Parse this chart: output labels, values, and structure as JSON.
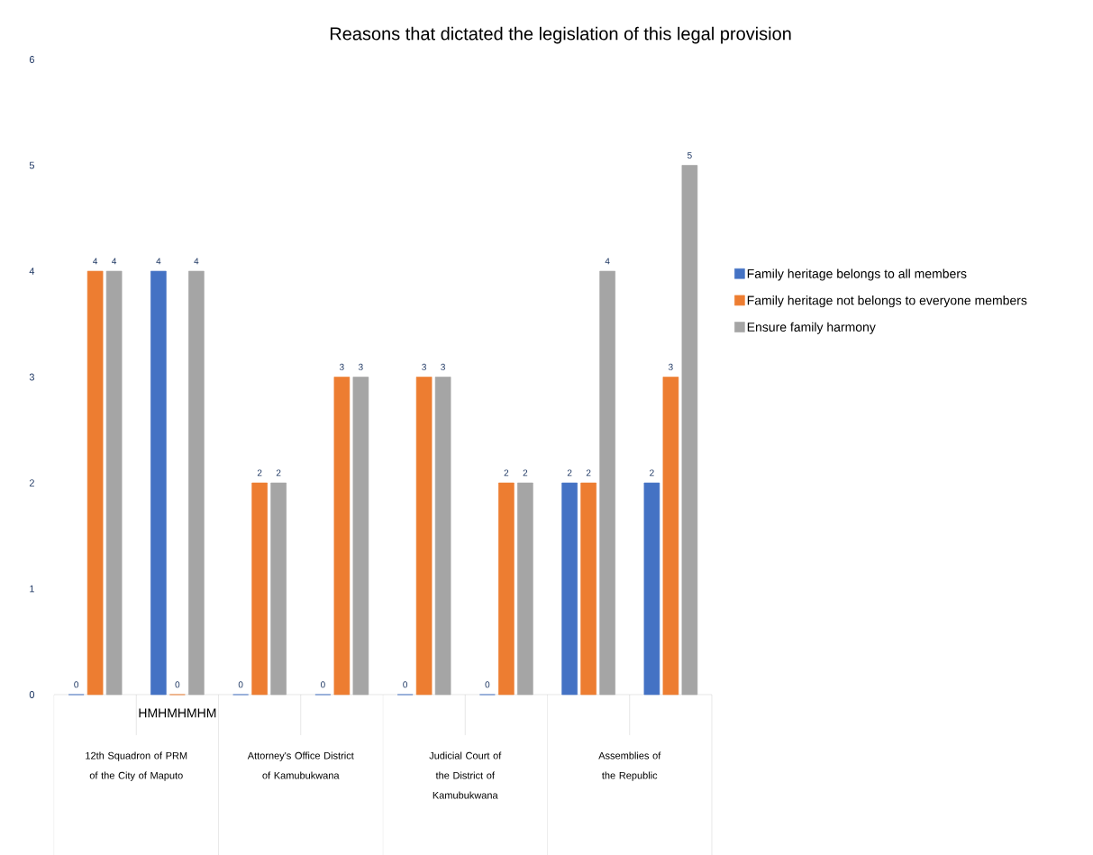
{
  "chart_data": {
    "type": "bar",
    "title": "Reasons that dictated the legislation of this legal provision",
    "categories": [
      null,
      null,
      null,
      null,
      null,
      null,
      null,
      null
    ],
    "series": [
      {
        "name": "Family heritage belongs to all members",
        "color": "#4472c4",
        "values": [
          0,
          4,
          0,
          0,
          0,
          0,
          2,
          2
        ]
      },
      {
        "name": "Family heritage not belongs to everyone members",
        "color": "#ed7d31",
        "values": [
          4,
          0,
          2,
          3,
          3,
          2,
          2,
          3
        ]
      },
      {
        "name": "Ensure family harmony",
        "color": "#a5a5a5",
        "values": [
          4,
          4,
          2,
          3,
          3,
          2,
          4,
          5
        ]
      }
    ],
    "ylim": [
      0,
      6
    ],
    "yticks": [
      0,
      1,
      2,
      3,
      4,
      5,
      6
    ],
    "data_labels": true,
    "legend": "right",
    "annotations": [
      "HMHMHMHM",
      "12th Squadron of PRM of the City of Maputo",
      "Attorney's Office District of Kamubukwana",
      "Judicial Court of the District of Kamubukwana",
      "Assemblies of the Republic"
    ]
  }
}
